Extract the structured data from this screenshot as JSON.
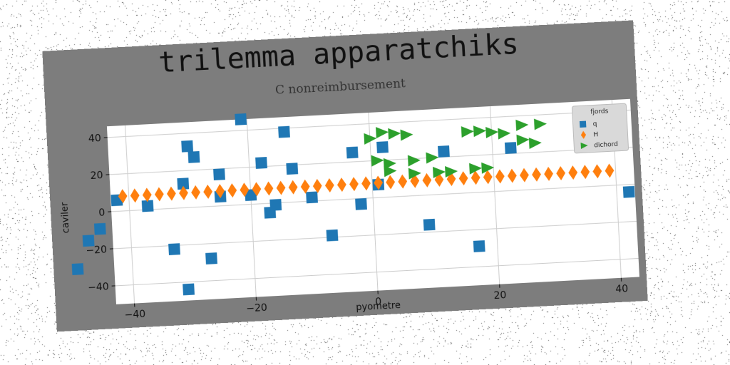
{
  "chart_data": {
    "type": "scatter",
    "title": "trilemma apparatchiks",
    "subtitle": "C nonreimbursement",
    "xlabel": "pyometre",
    "ylabel": "caviler",
    "xlim": [
      -43,
      43
    ],
    "ylim": [
      -50,
      46
    ],
    "xticks": [
      -40,
      -20,
      0,
      20,
      40
    ],
    "yticks": [
      -40,
      -20,
      0,
      20,
      40
    ],
    "grid": true,
    "legend": {
      "title": "fjords",
      "position": "top-right"
    },
    "series": [
      {
        "name": "q",
        "marker": "square",
        "color": "#1f77b4",
        "points": [
          [
            -49,
            -30
          ],
          [
            -47,
            -15
          ],
          [
            -45,
            -9
          ],
          [
            -42,
            6
          ],
          [
            -37,
            2
          ],
          [
            -33,
            -22
          ],
          [
            -31,
            -44
          ],
          [
            -31,
            13
          ],
          [
            -30,
            33
          ],
          [
            -29,
            27
          ],
          [
            -27,
            -28
          ],
          [
            -25,
            17
          ],
          [
            -25,
            5
          ],
          [
            -21,
            46
          ],
          [
            -20,
            5
          ],
          [
            -18,
            22
          ],
          [
            -17,
            -5
          ],
          [
            -16,
            -1
          ],
          [
            -14,
            38
          ],
          [
            -13,
            18
          ],
          [
            -10,
            2
          ],
          [
            -7,
            -19
          ],
          [
            -3,
            25
          ],
          [
            -2,
            -3
          ],
          [
            1,
            7
          ],
          [
            2,
            27
          ],
          [
            9,
            -16
          ],
          [
            12,
            23
          ],
          [
            17,
            -29
          ],
          [
            23,
            23
          ],
          [
            42,
            -4
          ]
        ]
      },
      {
        "name": "H",
        "marker": "diamond",
        "color": "#ff7f0e",
        "points": [
          [
            -41,
            8
          ],
          [
            -39,
            8
          ],
          [
            -37,
            8
          ],
          [
            -35,
            8
          ],
          [
            -33,
            8
          ],
          [
            -31,
            8
          ],
          [
            -29,
            8
          ],
          [
            -27,
            8
          ],
          [
            -25,
            8
          ],
          [
            -23,
            8
          ],
          [
            -21,
            8
          ],
          [
            -19,
            8
          ],
          [
            -17,
            8
          ],
          [
            -15,
            8
          ],
          [
            -13,
            8
          ],
          [
            -11,
            8
          ],
          [
            -9,
            8
          ],
          [
            -7,
            8
          ],
          [
            -5,
            8
          ],
          [
            -3,
            8
          ],
          [
            -1,
            8
          ],
          [
            1,
            8
          ],
          [
            3,
            8
          ],
          [
            5,
            8
          ],
          [
            7,
            8
          ],
          [
            9,
            8
          ],
          [
            11,
            8
          ],
          [
            13,
            8
          ],
          [
            15,
            8
          ],
          [
            17,
            8
          ],
          [
            19,
            8
          ],
          [
            21,
            8
          ],
          [
            23,
            8
          ],
          [
            25,
            8
          ],
          [
            27,
            8
          ],
          [
            29,
            8
          ],
          [
            31,
            8
          ],
          [
            33,
            8
          ],
          [
            35,
            8
          ],
          [
            37,
            8
          ],
          [
            39,
            8
          ]
        ]
      },
      {
        "name": "dichord",
        "marker": "triangle-right",
        "color": "#2ca02c",
        "points": [
          [
            0,
            32
          ],
          [
            2,
            35
          ],
          [
            4,
            34
          ],
          [
            6,
            33
          ],
          [
            1,
            20
          ],
          [
            3,
            18
          ],
          [
            7,
            19
          ],
          [
            10,
            20
          ],
          [
            3,
            14
          ],
          [
            7,
            12
          ],
          [
            11,
            12
          ],
          [
            16,
            33
          ],
          [
            18,
            33
          ],
          [
            20,
            32
          ],
          [
            22,
            31
          ],
          [
            25,
            35
          ],
          [
            28,
            35
          ],
          [
            25,
            27
          ],
          [
            27,
            25
          ],
          [
            17,
            13
          ],
          [
            19,
            13
          ],
          [
            13,
            12
          ]
        ]
      }
    ]
  }
}
